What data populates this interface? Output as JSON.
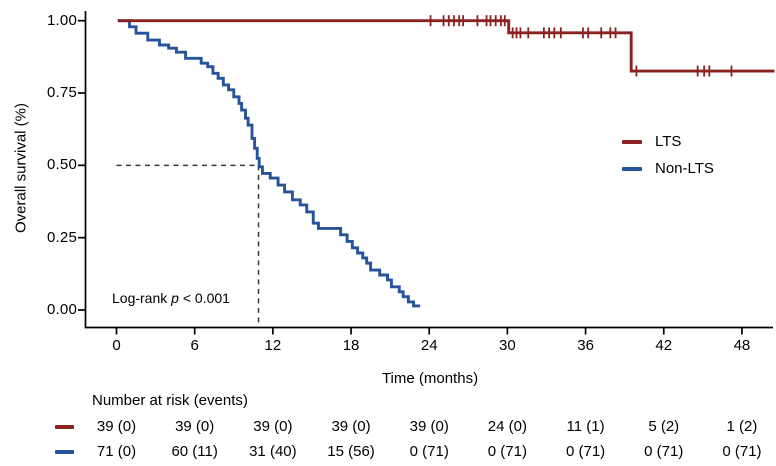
{
  "figure": {
    "background": "#ffffff",
    "y_axis": {
      "title": "Overall survival (%)",
      "ticks": [
        "1.00",
        "0.75",
        "0.50",
        "0.25",
        "0.00"
      ],
      "tick_values": [
        1.0,
        0.75,
        0.5,
        0.25,
        0.0
      ]
    },
    "x_axis": {
      "title": "Time (months)",
      "ticks": [
        "0",
        "6",
        "12",
        "18",
        "24",
        "30",
        "36",
        "42",
        "48"
      ],
      "tick_values": [
        0,
        6,
        12,
        18,
        24,
        30,
        36,
        42,
        48
      ]
    },
    "annotation": {
      "prefix": "Log-rank ",
      "stat": "p",
      "suffix": " < 0.001"
    },
    "axis_color": "#000000",
    "dashed_line_color": "#3a3a3a"
  },
  "chart_data": {
    "type": "line",
    "subtype": "kaplan-meier-step",
    "title": "",
    "xlabel": "Time (months)",
    "ylabel": "Overall survival (%)",
    "xlim": [
      0,
      50.5
    ],
    "ylim": [
      0,
      1.0
    ],
    "x_ticks": [
      0,
      6,
      12,
      18,
      24,
      30,
      36,
      42,
      48
    ],
    "y_ticks": [
      0,
      0.25,
      0.5,
      0.75,
      1.0
    ],
    "grid": false,
    "legend_position": "right-middle",
    "annotation": "Log-rank p < 0.001",
    "median_line": {
      "time": 10.9,
      "survival": 0.5
    },
    "series": [
      {
        "name": "LTS",
        "color": "#8B2222",
        "start": 0.1,
        "end": 50.5,
        "steps": [
          [
            30.1,
            0.958
          ],
          [
            39.5,
            0.826
          ]
        ],
        "censored": [
          [
            24.1,
            1.0
          ],
          [
            25.1,
            1.0
          ],
          [
            25.5,
            1.0
          ],
          [
            25.9,
            1.0
          ],
          [
            26.3,
            1.0
          ],
          [
            26.6,
            1.0
          ],
          [
            27.7,
            1.0
          ],
          [
            28.4,
            1.0
          ],
          [
            28.7,
            1.0
          ],
          [
            29.1,
            1.0
          ],
          [
            29.5,
            1.0
          ],
          [
            29.8,
            1.0
          ],
          [
            30.4,
            0.958
          ],
          [
            30.7,
            0.958
          ],
          [
            31.0,
            0.958
          ],
          [
            31.6,
            0.958
          ],
          [
            32.8,
            0.958
          ],
          [
            33.2,
            0.958
          ],
          [
            33.6,
            0.958
          ],
          [
            34.1,
            0.958
          ],
          [
            35.8,
            0.958
          ],
          [
            36.2,
            0.958
          ],
          [
            37.2,
            0.958
          ],
          [
            37.9,
            0.958
          ],
          [
            38.3,
            0.958
          ],
          [
            39.9,
            0.826
          ],
          [
            44.6,
            0.826
          ],
          [
            45.1,
            0.826
          ],
          [
            45.5,
            0.826
          ],
          [
            47.2,
            0.826
          ]
        ]
      },
      {
        "name": "Non-LTS",
        "color": "#27539B",
        "start": 0.1,
        "end": 23.3,
        "steps": [
          [
            1.0,
            0.979
          ],
          [
            1.5,
            0.957
          ],
          [
            2.4,
            0.933
          ],
          [
            3.3,
            0.916
          ],
          [
            4.0,
            0.905
          ],
          [
            4.6,
            0.891
          ],
          [
            5.3,
            0.87
          ],
          [
            6.5,
            0.853
          ],
          [
            7.0,
            0.841
          ],
          [
            7.4,
            0.818
          ],
          [
            7.8,
            0.801
          ],
          [
            8.2,
            0.778
          ],
          [
            8.6,
            0.761
          ],
          [
            9.0,
            0.737
          ],
          [
            9.4,
            0.714
          ],
          [
            9.6,
            0.691
          ],
          [
            9.9,
            0.663
          ],
          [
            10.1,
            0.639
          ],
          [
            10.4,
            0.593
          ],
          [
            10.6,
            0.559
          ],
          [
            10.8,
            0.524
          ],
          [
            10.95,
            0.495
          ],
          [
            11.2,
            0.472
          ],
          [
            11.8,
            0.456
          ],
          [
            12.4,
            0.432
          ],
          [
            12.9,
            0.408
          ],
          [
            13.5,
            0.381
          ],
          [
            14.1,
            0.363
          ],
          [
            14.6,
            0.339
          ],
          [
            15.1,
            0.3
          ],
          [
            15.5,
            0.282
          ],
          [
            17.2,
            0.26
          ],
          [
            17.7,
            0.237
          ],
          [
            18.1,
            0.215
          ],
          [
            18.5,
            0.197
          ],
          [
            18.9,
            0.18
          ],
          [
            19.2,
            0.162
          ],
          [
            19.5,
            0.138
          ],
          [
            20.2,
            0.121
          ],
          [
            20.8,
            0.104
          ],
          [
            21.1,
            0.08
          ],
          [
            21.7,
            0.063
          ],
          [
            22.0,
            0.046
          ],
          [
            22.4,
            0.028
          ],
          [
            22.8,
            0.014
          ]
        ],
        "censored": []
      }
    ],
    "risk_table": {
      "header": "Number at risk (events)",
      "times": [
        0,
        6,
        12,
        18,
        24,
        30,
        36,
        42,
        48
      ],
      "rows": [
        {
          "name": "LTS",
          "color": "#8B2222",
          "values": [
            "39 (0)",
            "39 (0)",
            "39 (0)",
            "39 (0)",
            "39 (0)",
            "24 (0)",
            "11 (1)",
            "5 (2)",
            "1 (2)"
          ]
        },
        {
          "name": "Non-LTS",
          "color": "#27539B",
          "values": [
            "71 (0)",
            "60 (11)",
            "31 (40)",
            "15 (56)",
            "0 (71)",
            "0 (71)",
            "0 (71)",
            "0 (71)",
            "0 (71)"
          ]
        }
      ]
    }
  }
}
